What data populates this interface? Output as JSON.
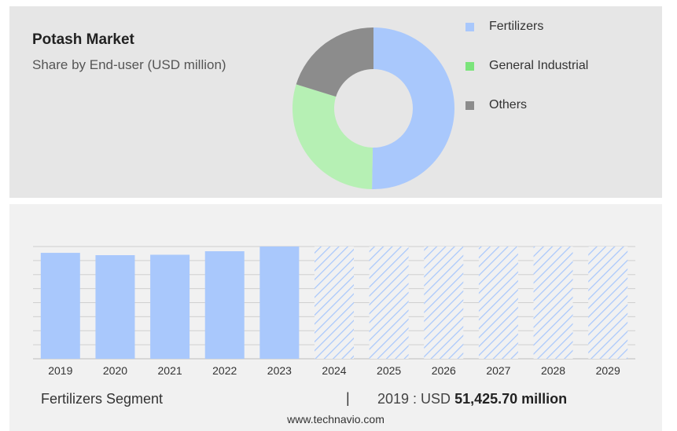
{
  "header": {
    "title": "Potash Market",
    "subtitle": "Share by End-user (USD million)"
  },
  "chart_data": [
    {
      "type": "pie",
      "title": "Potash Market",
      "subtitle": "Share by End-user (USD million)",
      "donut": true,
      "legend_position": "right",
      "series": [
        {
          "name": "Fertilizers",
          "value": 50.3,
          "color": "#a9c8fc"
        },
        {
          "name": "General Industrial",
          "value": 29.5,
          "color": "#b6f0b4"
        },
        {
          "name": "Others",
          "value": 20.2,
          "color": "#8c8c8c"
        }
      ]
    },
    {
      "type": "bar",
      "categories": [
        "2019",
        "2020",
        "2021",
        "2022",
        "2023",
        "2024",
        "2025",
        "2026",
        "2027",
        "2028",
        "2029"
      ],
      "values": [
        51425.7,
        50300,
        50500,
        52200,
        54500,
        54500,
        54500,
        54500,
        54500,
        54500,
        54500
      ],
      "forecast_from": "2024",
      "grid": true,
      "color": "#a9c8fc",
      "ylim": [
        0,
        54500
      ]
    }
  ],
  "footer": {
    "segment": "Fertilizers Segment",
    "separator": "|",
    "year_label": "2019 : USD",
    "value": "51,425.70 million",
    "source": "www.technavio.com"
  }
}
